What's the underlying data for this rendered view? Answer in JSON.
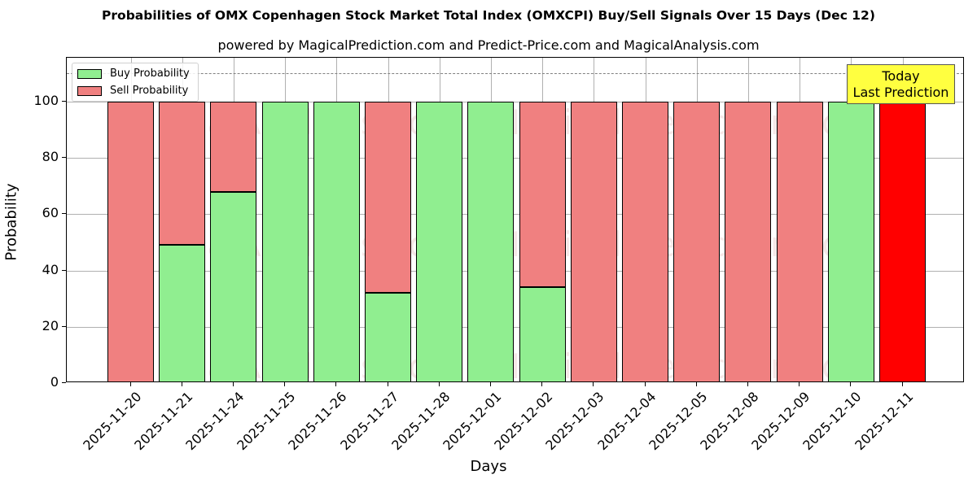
{
  "title": "Probabilities of OMX Copenhagen Stock Market Total Index (OMXCPI) Buy/Sell Signals Over 15 Days (Dec 12)",
  "subtitle": "powered by MagicalPrediction.com and Predict-Price.com and MagicalAnalysis.com",
  "legend": {
    "buy": "Buy Probability",
    "sell": "Sell Probability"
  },
  "annotation": {
    "line1": "Today",
    "line2": "Last Prediction"
  },
  "watermarks": [
    "MagicalAnalysis.com",
    "MagicalPrediction.com"
  ],
  "colors": {
    "buy": "#90ee90",
    "sell": "#f08080",
    "today_sell": "#ff0000",
    "annotation_bg": "#ffff40"
  },
  "chart_data": {
    "type": "bar",
    "stacked": true,
    "title": "Probabilities of OMX Copenhagen Stock Market Total Index (OMXCPI) Buy/Sell Signals Over 15 Days (Dec 12)",
    "subtitle": "powered by MagicalPrediction.com and Predict-Price.com and MagicalAnalysis.com",
    "xlabel": "Days",
    "ylabel": "Probability",
    "ylim": [
      0,
      115
    ],
    "yticks": [
      0,
      20,
      40,
      60,
      80,
      100
    ],
    "grid": true,
    "legend_position": "upper left",
    "reference_line": {
      "y": 110,
      "style": "dashed",
      "color": "#808080"
    },
    "categories": [
      "2025-11-20",
      "2025-11-21",
      "2025-11-24",
      "2025-11-25",
      "2025-11-26",
      "2025-11-27",
      "2025-11-28",
      "2025-12-01",
      "2025-12-02",
      "2025-12-03",
      "2025-12-04",
      "2025-12-05",
      "2025-12-08",
      "2025-12-09",
      "2025-12-10",
      "2025-12-11"
    ],
    "series": [
      {
        "name": "Buy Probability",
        "values": [
          0,
          49,
          68,
          100,
          100,
          32,
          100,
          100,
          34,
          0,
          0,
          0,
          0,
          0,
          100,
          0
        ]
      },
      {
        "name": "Sell Probability",
        "values": [
          100,
          51,
          32,
          0,
          0,
          68,
          0,
          0,
          66,
          100,
          100,
          100,
          100,
          100,
          0,
          100
        ]
      }
    ],
    "annotations": [
      {
        "text": "Today\nLast Prediction",
        "x": "2025-12-11"
      }
    ]
  }
}
